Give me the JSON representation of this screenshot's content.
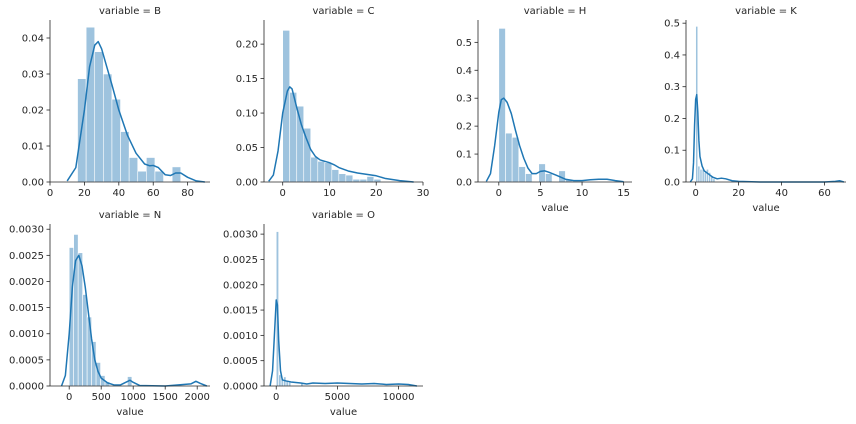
{
  "chart_data": [
    {
      "type": "histogram+kde",
      "title": "variable = B",
      "xlabel": "",
      "ylabel": "",
      "xlim": [
        0,
        93
      ],
      "ylim": [
        0,
        0.045
      ],
      "xticks": [
        0,
        20,
        40,
        60,
        80
      ],
      "yticks": [
        0.0,
        0.01,
        0.02,
        0.03,
        0.04
      ],
      "ytick_labels": [
        "0.00",
        "0.01",
        "0.02",
        "0.03",
        "0.04"
      ],
      "bins": [
        {
          "x0": 16,
          "x1": 21,
          "y": 0.0287
        },
        {
          "x0": 21,
          "x1": 26,
          "y": 0.043
        },
        {
          "x0": 26,
          "x1": 31,
          "y": 0.0362
        },
        {
          "x0": 31,
          "x1": 36,
          "y": 0.03
        },
        {
          "x0": 36,
          "x1": 41,
          "y": 0.023
        },
        {
          "x0": 41,
          "x1": 46,
          "y": 0.014
        },
        {
          "x0": 46,
          "x1": 51,
          "y": 0.0068
        },
        {
          "x0": 51,
          "x1": 56,
          "y": 0.003
        },
        {
          "x0": 56,
          "x1": 61,
          "y": 0.0068
        },
        {
          "x0": 61,
          "x1": 66,
          "y": 0.003
        },
        {
          "x0": 66,
          "x1": 71,
          "y": 0.0
        },
        {
          "x0": 71,
          "x1": 76,
          "y": 0.0042
        }
      ],
      "kde": {
        "x": [
          10,
          15,
          20,
          23,
          26,
          28,
          30,
          33,
          36,
          40,
          45,
          50,
          55,
          58,
          60,
          63,
          67,
          70,
          73,
          76,
          80,
          85,
          90
        ],
        "y": [
          0.0003,
          0.004,
          0.02,
          0.032,
          0.038,
          0.039,
          0.037,
          0.032,
          0.027,
          0.02,
          0.013,
          0.008,
          0.005,
          0.0045,
          0.0046,
          0.004,
          0.002,
          0.0018,
          0.0025,
          0.0025,
          0.0013,
          0.0003,
          0.0
        ]
      }
    },
    {
      "type": "histogram+kde",
      "title": "variable = C",
      "xlabel": "",
      "ylabel": "",
      "xlim": [
        -4,
        30
      ],
      "ylim": [
        0,
        0.235
      ],
      "xticks": [
        0,
        10,
        20,
        30
      ],
      "yticks": [
        0.0,
        0.05,
        0.1,
        0.15,
        0.2
      ],
      "ytick_labels": [
        "0.00",
        "0.05",
        "0.10",
        "0.15",
        "0.20"
      ],
      "bins": [
        {
          "x0": 0,
          "x1": 1.5,
          "y": 0.22
        },
        {
          "x0": 1.5,
          "x1": 3,
          "y": 0.13
        },
        {
          "x0": 3,
          "x1": 4.5,
          "y": 0.11
        },
        {
          "x0": 4.5,
          "x1": 6,
          "y": 0.078
        },
        {
          "x0": 6,
          "x1": 7.5,
          "y": 0.036
        },
        {
          "x0": 7.5,
          "x1": 9,
          "y": 0.03
        },
        {
          "x0": 9,
          "x1": 10.5,
          "y": 0.028
        },
        {
          "x0": 10.5,
          "x1": 12,
          "y": 0.018
        },
        {
          "x0": 12,
          "x1": 13.5,
          "y": 0.012
        },
        {
          "x0": 13.5,
          "x1": 15,
          "y": 0.01
        },
        {
          "x0": 15,
          "x1": 16.5,
          "y": 0.004
        },
        {
          "x0": 16.5,
          "x1": 18,
          "y": 0.004
        },
        {
          "x0": 18,
          "x1": 19.5,
          "y": 0.008
        },
        {
          "x0": 19.5,
          "x1": 21,
          "y": 0.004
        }
      ],
      "kde": {
        "x": [
          -3,
          -2,
          -1,
          0,
          1,
          1.5,
          2,
          3,
          4,
          5,
          6,
          7,
          8,
          9,
          10,
          11,
          12,
          14,
          16,
          18,
          20,
          22,
          25,
          28
        ],
        "y": [
          0.001,
          0.01,
          0.045,
          0.1,
          0.132,
          0.138,
          0.135,
          0.108,
          0.083,
          0.064,
          0.047,
          0.037,
          0.032,
          0.03,
          0.028,
          0.025,
          0.021,
          0.016,
          0.013,
          0.011,
          0.009,
          0.005,
          0.002,
          0.0
        ]
      }
    },
    {
      "type": "histogram+kde",
      "title": "variable = H",
      "xlabel": "value",
      "ylabel": "",
      "xlim": [
        -2.5,
        16
      ],
      "ylim": [
        0,
        0.58
      ],
      "xticks": [
        0,
        5,
        10,
        15
      ],
      "yticks": [
        0.0,
        0.1,
        0.2,
        0.3,
        0.4,
        0.5
      ],
      "ytick_labels": [
        "0.0",
        "0.1",
        "0.2",
        "0.3",
        "0.4",
        "0.5"
      ],
      "bins": [
        {
          "x0": 0,
          "x1": 0.8,
          "y": 0.55
        },
        {
          "x0": 0.8,
          "x1": 1.6,
          "y": 0.175
        },
        {
          "x0": 1.6,
          "x1": 2.4,
          "y": 0.16
        },
        {
          "x0": 2.4,
          "x1": 3.2,
          "y": 0.055
        },
        {
          "x0": 3.2,
          "x1": 4.0,
          "y": 0.03
        },
        {
          "x0": 4.0,
          "x1": 4.8,
          "y": 0.0
        },
        {
          "x0": 4.8,
          "x1": 5.6,
          "y": 0.065
        },
        {
          "x0": 5.6,
          "x1": 6.4,
          "y": 0.03
        },
        {
          "x0": 6.4,
          "x1": 7.2,
          "y": 0.0
        },
        {
          "x0": 7.2,
          "x1": 8.0,
          "y": 0.04
        },
        {
          "x0": 8.0,
          "x1": 8.8,
          "y": 0.01
        }
      ],
      "kde": {
        "x": [
          -1.5,
          -1,
          -0.5,
          0,
          0.3,
          0.6,
          1,
          1.5,
          2,
          2.5,
          3,
          3.5,
          4,
          4.5,
          5,
          5.5,
          6,
          7,
          8,
          9,
          10,
          11,
          12,
          13,
          14,
          15
        ],
        "y": [
          0.002,
          0.03,
          0.13,
          0.25,
          0.295,
          0.3,
          0.285,
          0.245,
          0.185,
          0.13,
          0.085,
          0.05,
          0.03,
          0.03,
          0.038,
          0.04,
          0.035,
          0.023,
          0.01,
          0.005,
          0.005,
          0.008,
          0.01,
          0.01,
          0.005,
          0.001
        ]
      }
    },
    {
      "type": "histogram+kde",
      "title": "variable = K",
      "xlabel": "value",
      "ylabel": "",
      "xlim": [
        -4.5,
        70
      ],
      "ylim": [
        0,
        0.51
      ],
      "xticks": [
        0,
        20,
        40,
        60
      ],
      "yticks": [
        0.0,
        0.1,
        0.2,
        0.3,
        0.4,
        0.5
      ],
      "ytick_labels": [
        "0.0",
        "0.1",
        "0.2",
        "0.3",
        "0.4",
        "0.5"
      ],
      "bins": [
        {
          "x0": 0,
          "x1": 1,
          "y": 0.49
        },
        {
          "x0": 1,
          "x1": 2,
          "y": 0.05
        },
        {
          "x0": 2,
          "x1": 3,
          "y": 0.04
        },
        {
          "x0": 3,
          "x1": 4,
          "y": 0.04
        },
        {
          "x0": 4,
          "x1": 5,
          "y": 0.03
        },
        {
          "x0": 5,
          "x1": 6,
          "y": 0.04
        },
        {
          "x0": 6,
          "x1": 7,
          "y": 0.03
        },
        {
          "x0": 7,
          "x1": 8,
          "y": 0.02
        },
        {
          "x0": 8,
          "x1": 9,
          "y": 0.01
        }
      ],
      "kde": {
        "x": [
          -2.5,
          -1.5,
          -1,
          -0.5,
          0,
          0.5,
          1,
          1.5,
          2,
          3,
          4,
          5,
          6,
          8,
          10,
          12,
          14,
          17,
          20,
          30,
          40,
          50,
          60,
          65,
          67,
          69
        ],
        "y": [
          0.0,
          0.01,
          0.06,
          0.18,
          0.26,
          0.275,
          0.22,
          0.13,
          0.08,
          0.05,
          0.035,
          0.03,
          0.025,
          0.015,
          0.01,
          0.012,
          0.01,
          0.004,
          0.002,
          0.0,
          0.0,
          0.0,
          0.0,
          0.002,
          0.004,
          0.0
        ]
      }
    },
    {
      "type": "histogram+kde",
      "title": "variable = N",
      "xlabel": "value",
      "ylabel": "",
      "xlim": [
        -300,
        2200
      ],
      "ylim": [
        0,
        0.0031
      ],
      "xticks": [
        0,
        500,
        1000,
        1500,
        2000
      ],
      "yticks": [
        0.0,
        0.0005,
        0.001,
        0.0015,
        0.002,
        0.0025,
        0.003
      ],
      "ytick_labels": [
        "0.0000",
        "0.0005",
        "0.0010",
        "0.0015",
        "0.0020",
        "0.0025",
        "0.0030"
      ],
      "bins": [
        {
          "x0": 0,
          "x1": 70,
          "y": 0.00265
        },
        {
          "x0": 70,
          "x1": 140,
          "y": 0.0029
        },
        {
          "x0": 140,
          "x1": 210,
          "y": 0.00255
        },
        {
          "x0": 210,
          "x1": 280,
          "y": 0.00175
        },
        {
          "x0": 280,
          "x1": 350,
          "y": 0.00132
        },
        {
          "x0": 350,
          "x1": 420,
          "y": 0.00085
        },
        {
          "x0": 420,
          "x1": 490,
          "y": 0.00045
        },
        {
          "x0": 490,
          "x1": 560,
          "y": 0.0002
        },
        {
          "x0": 560,
          "x1": 630,
          "y": 8e-05
        },
        {
          "x0": 910,
          "x1": 980,
          "y": 0.00018
        }
      ],
      "kde": {
        "x": [
          -120,
          -60,
          0,
          50,
          100,
          150,
          200,
          250,
          300,
          350,
          400,
          450,
          500,
          600,
          700,
          800,
          900,
          950,
          1000,
          1100,
          1500,
          1900,
          1980,
          2050,
          2150
        ],
        "y": [
          0.0,
          0.0002,
          0.001,
          0.0019,
          0.0024,
          0.0025,
          0.0023,
          0.0019,
          0.0014,
          0.0009,
          0.0005,
          0.00028,
          0.00015,
          6e-05,
          2e-05,
          2e-05,
          8e-05,
          0.00011,
          7e-05,
          1e-05,
          0.0,
          4e-05,
          9e-05,
          5e-05,
          0.0
        ]
      }
    },
    {
      "type": "histogram+kde",
      "title": "variable = O",
      "xlabel": "value",
      "ylabel": "",
      "xlim": [
        -1000,
        12000
      ],
      "ylim": [
        0,
        0.0032
      ],
      "xticks": [
        0,
        5000,
        10000
      ],
      "yticks": [
        0.0,
        0.0005,
        0.001,
        0.0015,
        0.002,
        0.0025,
        0.003
      ],
      "ytick_labels": [
        "0.0000",
        "0.0005",
        "0.0010",
        "0.0015",
        "0.0020",
        "0.0025",
        "0.0030"
      ],
      "bins": [
        {
          "x0": 0,
          "x1": 200,
          "y": 0.00305
        },
        {
          "x0": 200,
          "x1": 400,
          "y": 0.00022
        },
        {
          "x0": 400,
          "x1": 600,
          "y": 0.00015
        },
        {
          "x0": 600,
          "x1": 800,
          "y": 0.00018
        },
        {
          "x0": 800,
          "x1": 1000,
          "y": 0.0001
        },
        {
          "x0": 1000,
          "x1": 1200,
          "y": 8e-05
        },
        {
          "x0": 2000,
          "x1": 2200,
          "y": 5e-05
        }
      ],
      "kde": {
        "x": [
          -500,
          -300,
          -150,
          0,
          100,
          200,
          350,
          500,
          800,
          1200,
          2000,
          2500,
          3000,
          4000,
          5000,
          6000,
          7000,
          8000,
          9000,
          10000,
          10800,
          11500
        ],
        "y": [
          0.0,
          0.0003,
          0.001,
          0.0017,
          0.0016,
          0.0009,
          0.0003,
          0.00012,
          0.0001,
          8e-05,
          6e-05,
          4e-05,
          6e-05,
          5e-05,
          6e-05,
          5e-05,
          4e-05,
          5e-05,
          3e-05,
          4e-05,
          3e-05,
          0.0
        ]
      }
    }
  ],
  "colors": {
    "hist_fill": "#9ec3de",
    "kde_line": "#1f77b4",
    "axis": "#262626"
  }
}
